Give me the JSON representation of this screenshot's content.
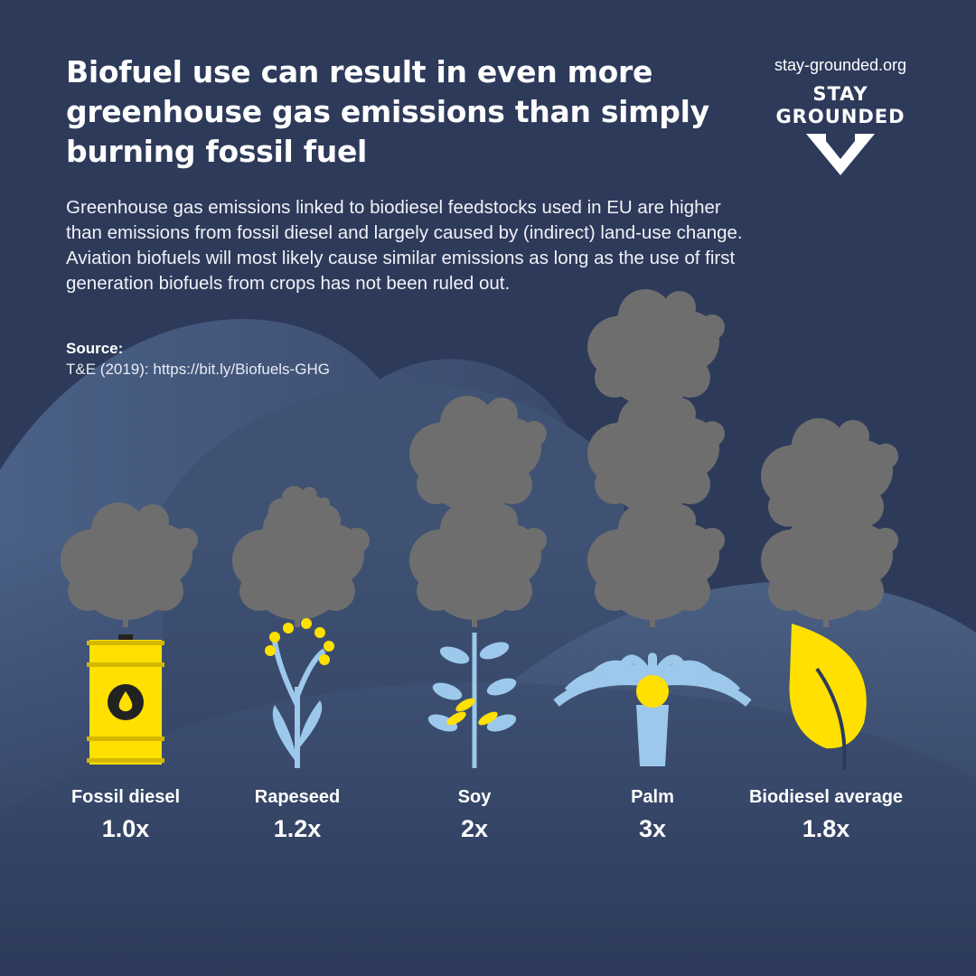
{
  "header": {
    "title": "Biofuel use can result in even more greenhouse gas emissions than simply burning fossil fuel",
    "description": "Greenhouse gas emissions linked to biodiesel feedstocks used in EU are higher than emissions from fossil diesel and largely caused by (indirect) land-use change. Aviation biofuels will most likely cause similar emissions as long as the use of first generation biofuels from crops has not been ruled out.",
    "source_heading": "Source:",
    "source_text": "T&E (2019): https://bit.ly/Biofuels-GHG"
  },
  "brand": {
    "url": "stay-grounded.org",
    "logo_line1": "STAY",
    "logo_line2": "GROUNDED"
  },
  "colors": {
    "background": "#2d3a5a",
    "smoke": "#6e6e6e",
    "yellow": "#ffe000",
    "plant_blue": "#9cc8ec"
  },
  "chart_data": {
    "type": "pictorial-bar",
    "title": "",
    "unit_suffix": "x",
    "categories": [
      "Fossil diesel",
      "Rapeseed",
      "Soy",
      "Palm",
      "Biodiesel average"
    ],
    "values": [
      1.0,
      1.2,
      2,
      3,
      1.8
    ],
    "value_labels": [
      "1.0x",
      "1.2x",
      "2x",
      "3x",
      "1.8x"
    ],
    "icons": [
      "oil-barrel-icon",
      "rapeseed-plant-icon",
      "soy-plant-icon",
      "palm-tree-icon",
      "leaf-icon"
    ]
  }
}
